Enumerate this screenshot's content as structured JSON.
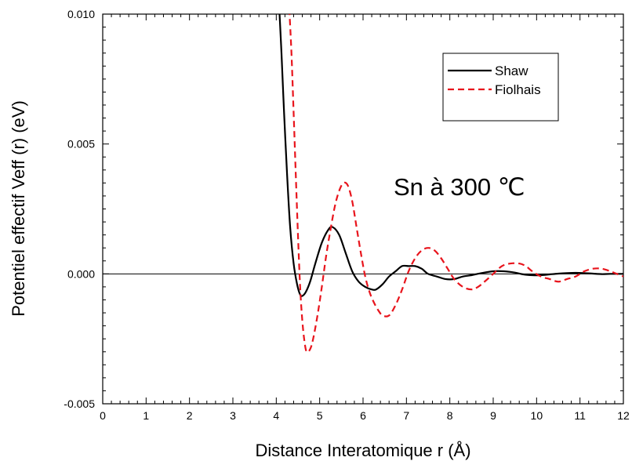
{
  "chart_data": {
    "type": "line",
    "title": "",
    "xlabel": "Distance Interatomique r (Å)",
    "ylabel": "Potentiel effectif Veff (r) (eV)",
    "xlim": [
      0,
      12
    ],
    "ylim": [
      -0.005,
      0.01
    ],
    "x_ticks": [
      0,
      1,
      2,
      3,
      4,
      5,
      6,
      7,
      8,
      9,
      10,
      11,
      12
    ],
    "y_ticks": [
      -0.005,
      0.0,
      0.005,
      0.01
    ],
    "x_tick_labels": [
      "0",
      "1",
      "2",
      "3",
      "4",
      "5",
      "6",
      "7",
      "8",
      "9",
      "10",
      "11",
      "12"
    ],
    "y_tick_labels": [
      "-0.005",
      "0.000",
      "0.005",
      "0.010"
    ],
    "grid": false,
    "zero_line": true,
    "legend_position": "top-right",
    "annotation": "Sn à 300 ℃",
    "series": [
      {
        "name": "Shaw",
        "color": "#000000",
        "style": "solid",
        "x": [
          4.07,
          4.12,
          4.18,
          4.25,
          4.32,
          4.4,
          4.48,
          4.55,
          4.6,
          4.68,
          4.78,
          4.9,
          5.05,
          5.2,
          5.3,
          5.45,
          5.6,
          5.75,
          5.9,
          6.05,
          6.2,
          6.3,
          6.45,
          6.6,
          6.75,
          6.9,
          7.05,
          7.2,
          7.35,
          7.5,
          7.7,
          7.9,
          8.1,
          8.3,
          8.5,
          8.7,
          9.0,
          9.25,
          9.5,
          9.7,
          9.9,
          10.1,
          10.3,
          10.5,
          10.7,
          10.9,
          11.1,
          11.3,
          11.5,
          11.7,
          12.0
        ],
        "y": [
          0.0102,
          0.0085,
          0.0062,
          0.0038,
          0.0018,
          0.0004,
          -0.0004,
          -0.0008,
          -0.00085,
          -0.0007,
          -0.0003,
          0.0004,
          0.0012,
          0.0017,
          0.0018,
          0.0015,
          0.0008,
          0.0001,
          -0.0003,
          -0.0005,
          -0.0006,
          -0.0006,
          -0.0004,
          -0.0001,
          0.0001,
          0.0003,
          0.0003,
          0.0003,
          0.0002,
          0.0,
          -0.0001,
          -0.0002,
          -0.0002,
          -0.0001,
          -5e-05,
          2e-05,
          0.0001,
          0.0001,
          5e-05,
          -2e-05,
          -5e-05,
          -5e-05,
          -2e-05,
          1e-05,
          3e-05,
          4e-05,
          3e-05,
          1e-05,
          -1e-05,
          0.0,
          0.0
        ]
      },
      {
        "name": "Fiolhais",
        "color": "#e8141c",
        "style": "dashed",
        "x": [
          4.3,
          4.35,
          4.4,
          4.45,
          4.5,
          4.55,
          4.6,
          4.65,
          4.7,
          4.78,
          4.85,
          4.95,
          5.05,
          5.15,
          5.25,
          5.35,
          5.45,
          5.55,
          5.65,
          5.75,
          5.85,
          5.95,
          6.05,
          6.15,
          6.25,
          6.35,
          6.45,
          6.6,
          6.75,
          6.9,
          7.05,
          7.2,
          7.35,
          7.5,
          7.65,
          7.8,
          7.95,
          8.1,
          8.3,
          8.5,
          8.65,
          8.8,
          9.0,
          9.2,
          9.4,
          9.6,
          9.75,
          9.9,
          10.1,
          10.3,
          10.5,
          10.7,
          10.9,
          11.1,
          11.3,
          11.5,
          11.7,
          11.85,
          12.0
        ],
        "y": [
          0.0102,
          0.0085,
          0.0062,
          0.0038,
          0.0015,
          -0.0005,
          -0.0018,
          -0.0026,
          -0.003,
          -0.0029,
          -0.0025,
          -0.0016,
          -0.0005,
          0.0007,
          0.0017,
          0.0026,
          0.0032,
          0.0035,
          0.0034,
          0.0028,
          0.0018,
          0.0008,
          -0.0001,
          -0.0007,
          -0.0011,
          -0.0014,
          -0.0016,
          -0.0016,
          -0.0012,
          -0.0006,
          0.0001,
          0.0006,
          0.0009,
          0.001,
          0.0009,
          0.0006,
          0.0002,
          -0.0002,
          -0.0005,
          -0.0006,
          -0.0005,
          -0.0003,
          0.0,
          0.0003,
          0.0004,
          0.0004,
          0.0003,
          0.0001,
          -0.0001,
          -0.0002,
          -0.0003,
          -0.0002,
          -0.0001,
          0.0001,
          0.0002,
          0.0002,
          0.0001,
          0.0,
          -0.0001
        ]
      }
    ]
  }
}
